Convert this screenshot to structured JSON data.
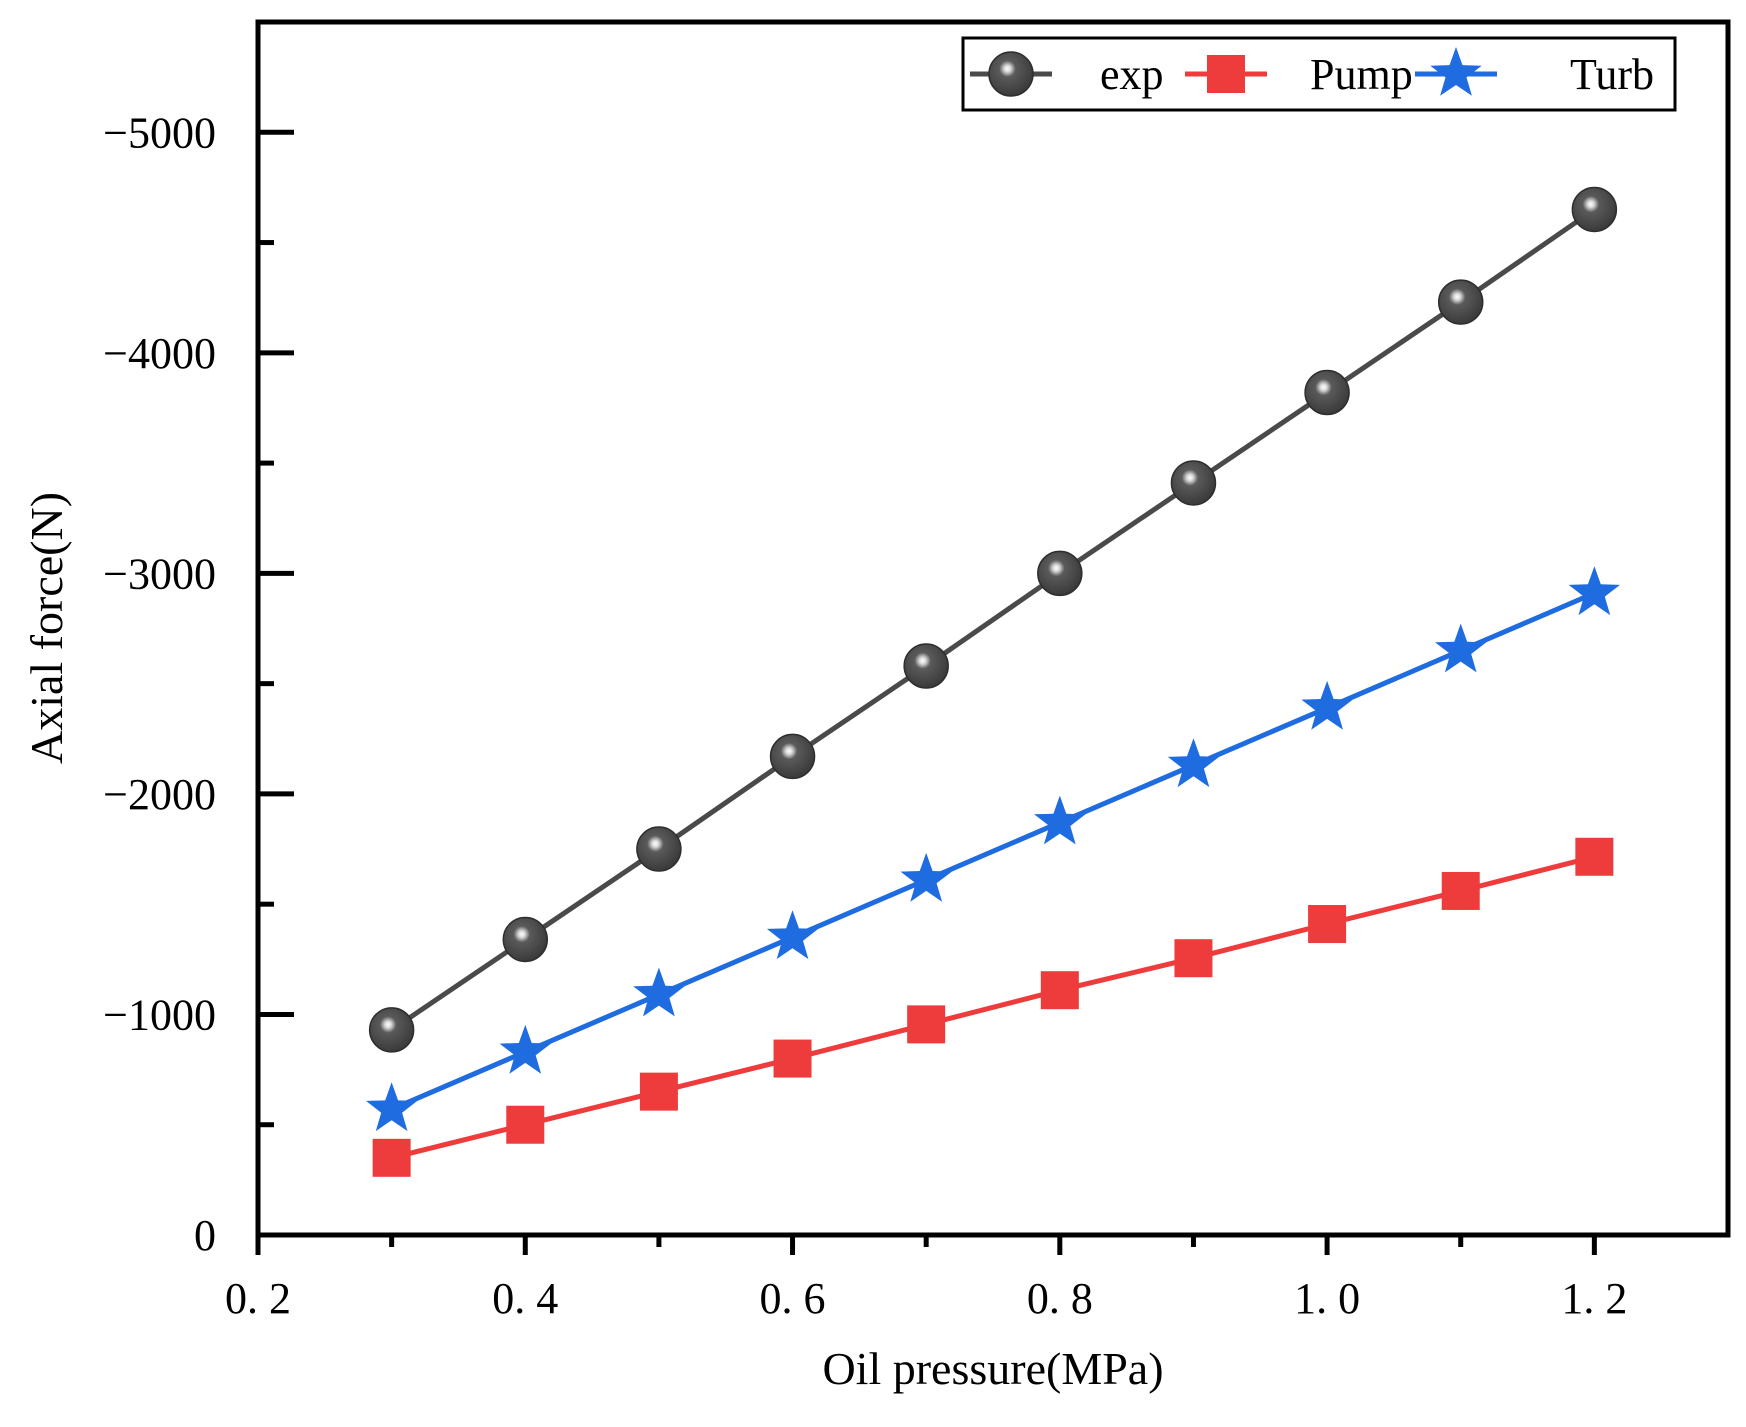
{
  "chart_data": {
    "type": "line",
    "title": "",
    "xlabel": "Oil pressure(MPa)",
    "ylabel": "Axial force(N)",
    "xlim": [
      0.2,
      1.3
    ],
    "ylim": [
      0,
      -5500
    ],
    "y_inverted": true,
    "x_ticks": [
      {
        "value": 0.2,
        "label": "0. 2"
      },
      {
        "value": 0.4,
        "label": "0. 4"
      },
      {
        "value": 0.6,
        "label": "0. 6"
      },
      {
        "value": 0.8,
        "label": "0. 8"
      },
      {
        "value": 1.0,
        "label": "1. 0"
      },
      {
        "value": 1.2,
        "label": "1. 2"
      }
    ],
    "x_minor_ticks": [
      0.3,
      0.5,
      0.7,
      0.9,
      1.1
    ],
    "y_ticks": [
      {
        "value": 0,
        "label": "0"
      },
      {
        "value": -1000,
        "label": "−1000"
      },
      {
        "value": -2000,
        "label": "−2000"
      },
      {
        "value": -3000,
        "label": "−3000"
      },
      {
        "value": -4000,
        "label": "−4000"
      },
      {
        "value": -5000,
        "label": "−5000"
      }
    ],
    "y_minor_ticks": [
      -500,
      -1500,
      -2500,
      -3500,
      -4500
    ],
    "grid": false,
    "legend_position": "top-right",
    "x": [
      0.3,
      0.4,
      0.5,
      0.6,
      0.7,
      0.8,
      0.9,
      1.0,
      1.1,
      1.2
    ],
    "series": [
      {
        "name": "exp",
        "marker": "ball",
        "color": "#4a4a4a",
        "values": [
          -930,
          -1340,
          -1750,
          -2170,
          -2580,
          -3000,
          -3410,
          -3820,
          -4230,
          -4650
        ]
      },
      {
        "name": "Pump",
        "marker": "square",
        "color": "#ee3b3b",
        "values": [
          -350,
          -500,
          -650,
          -800,
          -955,
          -1110,
          -1255,
          -1410,
          -1560,
          -1715
        ]
      },
      {
        "name": "Turb",
        "marker": "star",
        "color": "#1f6ce0",
        "values": [
          -570,
          -830,
          -1090,
          -1350,
          -1610,
          -1870,
          -2130,
          -2390,
          -2650,
          -2910
        ]
      }
    ]
  }
}
